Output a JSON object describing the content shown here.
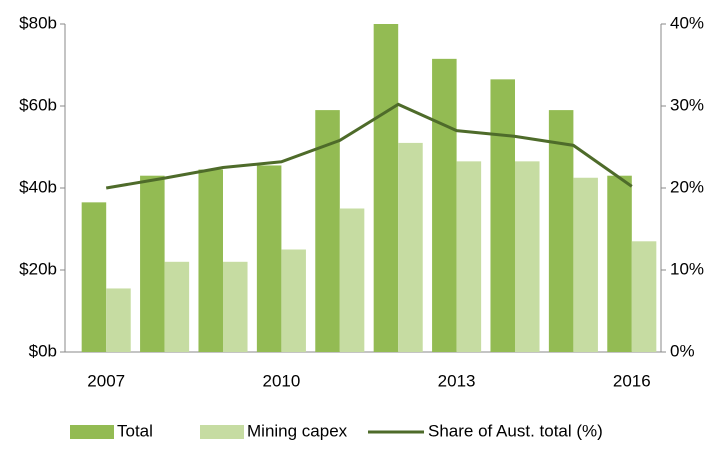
{
  "chart_data": {
    "type": "bar",
    "categories": [
      "2007",
      null,
      null,
      "2010",
      null,
      null,
      "2013",
      null,
      null,
      "2016"
    ],
    "series": [
      {
        "name": "Total",
        "color": "#93bb53",
        "values": [
          36.5,
          43,
          44.5,
          45.5,
          59,
          80,
          71.5,
          66.5,
          59,
          43
        ]
      },
      {
        "name": "Mining capex",
        "color": "#c6dca2",
        "values": [
          15.5,
          22,
          22,
          25,
          35,
          51,
          46.5,
          46.5,
          42.5,
          27
        ]
      },
      {
        "name": "Share of Aust. total (%)",
        "color": "#4e6b2a",
        "type": "line",
        "axis": "y2",
        "values": [
          20,
          21.2,
          22.5,
          23.2,
          25.8,
          30.2,
          27,
          26.3,
          25.2,
          20.2
        ]
      }
    ],
    "ylim": [
      0,
      80
    ],
    "yticks": [
      {
        "value": 0,
        "label": "$0b"
      },
      {
        "value": 20,
        "label": "$20b"
      },
      {
        "value": 40,
        "label": "$40b"
      },
      {
        "value": 60,
        "label": "$60b"
      },
      {
        "value": 80,
        "label": "$80b"
      }
    ],
    "y2lim": [
      0,
      40
    ],
    "y2ticks": [
      {
        "value": 0,
        "label": "0%"
      },
      {
        "value": 10,
        "label": "10%"
      },
      {
        "value": 20,
        "label": "20%"
      },
      {
        "value": 30,
        "label": "30%"
      },
      {
        "value": 40,
        "label": "40%"
      }
    ],
    "grid": false
  }
}
